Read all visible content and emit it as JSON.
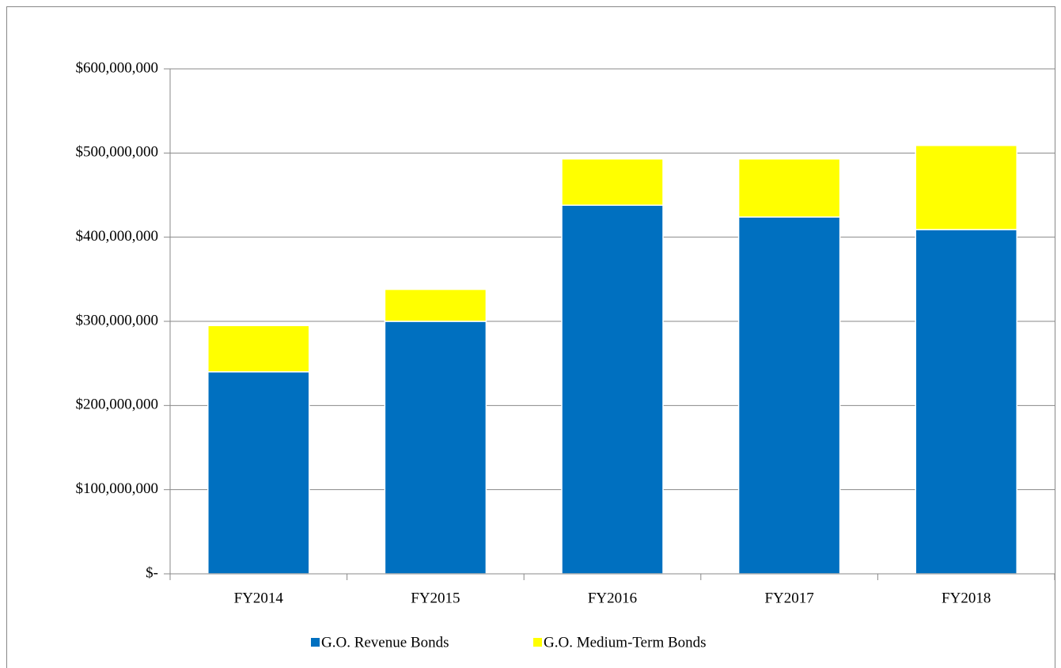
{
  "chart_data": {
    "type": "stacked-bar",
    "categories": [
      "FY2014",
      "FY2015",
      "FY2016",
      "FY2017",
      "FY2018"
    ],
    "series": [
      {
        "name": "G.O. Revenue Bonds",
        "color": "#0070c0",
        "values": [
          240000000,
          300000000,
          438000000,
          424000000,
          409000000
        ]
      },
      {
        "name": "G.O. Medium-Term Bonds",
        "color": "#ffff00",
        "values": [
          55000000,
          38000000,
          55000000,
          69000000,
          100000000
        ]
      }
    ],
    "ylim": [
      0,
      600000000
    ],
    "yticks": [
      {
        "value": 0,
        "label": "$-"
      },
      {
        "value": 100000000,
        "label": "$100,000,000"
      },
      {
        "value": 200000000,
        "label": "$200,000,000"
      },
      {
        "value": 300000000,
        "label": "$300,000,000"
      },
      {
        "value": 400000000,
        "label": "$400,000,000"
      },
      {
        "value": 500000000,
        "label": "$500,000,000"
      },
      {
        "value": 600000000,
        "label": "$600,000,000"
      }
    ],
    "grid": true,
    "legend": "bottom"
  }
}
